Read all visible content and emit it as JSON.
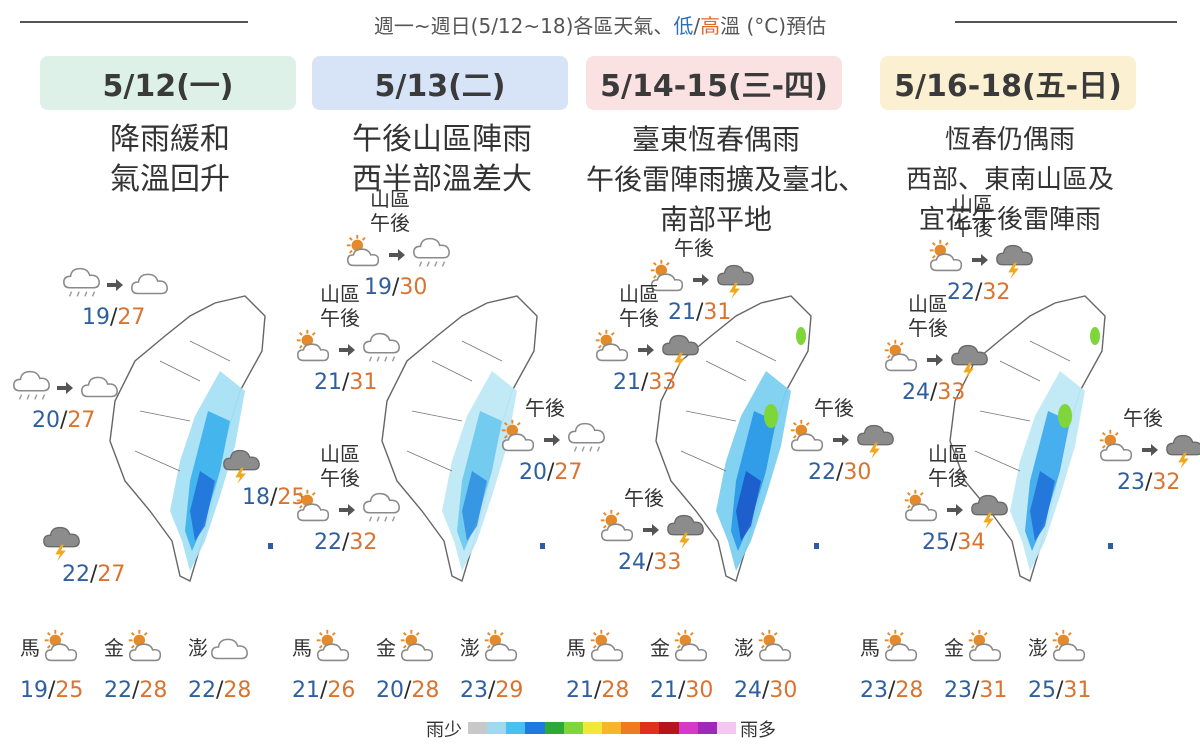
{
  "header": {
    "prefix": "週一~週日(5/12~18)各區天氣、",
    "low": "低",
    "slash": "/",
    "high": "高",
    "suffix": "溫 (°C)預估"
  },
  "colors": {
    "low_temp": "#2f5f9e",
    "high_temp": "#d9732f",
    "pill_1": "#def1e8",
    "pill_2": "#d7e3f7",
    "pill_3": "#fbe2e2",
    "pill_4": "#fbf1d2"
  },
  "days": [
    {
      "date": "5/12(一)",
      "headline": [
        "降雨緩和",
        "氣溫回升"
      ],
      "stations": [
        {
          "label": "",
          "icons": [
            "rain-cloud-icon",
            "cloud-icon"
          ],
          "low": "19",
          "high": "27"
        },
        {
          "label": "",
          "icons": [
            "rain-cloud-icon",
            "cloud-icon"
          ],
          "low": "20",
          "high": "27"
        },
        {
          "label": "",
          "icons": [
            "thunder-cloud-icon"
          ],
          "low": "18",
          "high": "25"
        },
        {
          "label": "",
          "icons": [
            "thunder-cloud-icon"
          ],
          "low": "22",
          "high": "27"
        }
      ],
      "islands": [
        {
          "name": "馬",
          "icon": "sun-cloud-icon",
          "low": "19",
          "high": "25"
        },
        {
          "name": "金",
          "icon": "sun-cloud-icon",
          "low": "22",
          "high": "28"
        },
        {
          "name": "澎",
          "icon": "cloud-icon",
          "low": "22",
          "high": "28"
        }
      ]
    },
    {
      "date": "5/13(二)",
      "headline": [
        "午後山區陣雨",
        "西半部溫差大"
      ],
      "stations": [
        {
          "label": "山區\n午後",
          "icons": [
            "sun-cloud-icon",
            "rain-cloud-icon"
          ],
          "low": "19",
          "high": "30"
        },
        {
          "label": "山區\n午後",
          "icons": [
            "sun-cloud-icon",
            "rain-cloud-icon"
          ],
          "low": "21",
          "high": "31"
        },
        {
          "label": "午後",
          "icons": [
            "sun-cloud-icon",
            "rain-cloud-icon"
          ],
          "low": "20",
          "high": "27"
        },
        {
          "label": "山區\n午後",
          "icons": [
            "sun-cloud-icon",
            "rain-cloud-icon"
          ],
          "low": "22",
          "high": "32"
        }
      ],
      "islands": [
        {
          "name": "馬",
          "icon": "sun-cloud-icon",
          "low": "21",
          "high": "26"
        },
        {
          "name": "金",
          "icon": "sun-cloud-icon",
          "low": "20",
          "high": "28"
        },
        {
          "name": "澎",
          "icon": "sun-cloud-icon",
          "low": "23",
          "high": "29"
        }
      ]
    },
    {
      "date": "5/14-15(三-四)",
      "headline": [
        "臺東恆春偶雨",
        "午後雷陣雨擴及臺北、",
        "南部平地"
      ],
      "stations": [
        {
          "label": "午後",
          "icons": [
            "sun-cloud-icon",
            "thunder-cloud-icon"
          ],
          "low": "21",
          "high": "31"
        },
        {
          "label": "山區\n午後",
          "icons": [
            "sun-cloud-icon",
            "thunder-cloud-icon"
          ],
          "low": "21",
          "high": "33"
        },
        {
          "label": "午後",
          "icons": [
            "sun-cloud-icon",
            "thunder-cloud-icon"
          ],
          "low": "22",
          "high": "30"
        },
        {
          "label": "午後",
          "icons": [
            "sun-cloud-icon",
            "thunder-cloud-icon"
          ],
          "low": "24",
          "high": "33"
        }
      ],
      "islands": [
        {
          "name": "馬",
          "icon": "sun-cloud-icon",
          "low": "21",
          "high": "28"
        },
        {
          "name": "金",
          "icon": "sun-cloud-icon",
          "low": "21",
          "high": "30"
        },
        {
          "name": "澎",
          "icon": "sun-cloud-icon",
          "low": "24",
          "high": "30"
        }
      ]
    },
    {
      "date": "5/16-18(五-日)",
      "headline": [
        "恆春仍偶雨",
        "西部、東南山區及",
        "宜花午後雷陣雨"
      ],
      "stations": [
        {
          "label": "山區\n午後",
          "icons": [
            "sun-cloud-icon",
            "thunder-cloud-icon"
          ],
          "low": "22",
          "high": "32"
        },
        {
          "label": "山區\n午後",
          "icons": [
            "sun-cloud-icon",
            "thunder-cloud-icon"
          ],
          "low": "24",
          "high": "33"
        },
        {
          "label": "午後",
          "icons": [
            "sun-cloud-icon",
            "thunder-cloud-icon"
          ],
          "low": "23",
          "high": "32"
        },
        {
          "label": "山區\n午後",
          "icons": [
            "sun-cloud-icon",
            "thunder-cloud-icon"
          ],
          "low": "25",
          "high": "34"
        }
      ],
      "islands": [
        {
          "name": "馬",
          "icon": "sun-cloud-icon",
          "low": "23",
          "high": "28"
        },
        {
          "name": "金",
          "icon": "sun-cloud-icon",
          "low": "23",
          "high": "31"
        },
        {
          "name": "澎",
          "icon": "sun-cloud-icon",
          "low": "25",
          "high": "31"
        }
      ]
    }
  ],
  "legend": {
    "few": "雨少",
    "many": "雨多",
    "scale_colors": [
      "#c8c8c8",
      "#a0d8f0",
      "#48c0f0",
      "#1e7ae0",
      "#2fa83a",
      "#7fd63a",
      "#f2e83a",
      "#f7b52a",
      "#f07a1e",
      "#e0301e",
      "#b8141e",
      "#d638c8",
      "#a028b8",
      "#f2c8f0"
    ]
  }
}
